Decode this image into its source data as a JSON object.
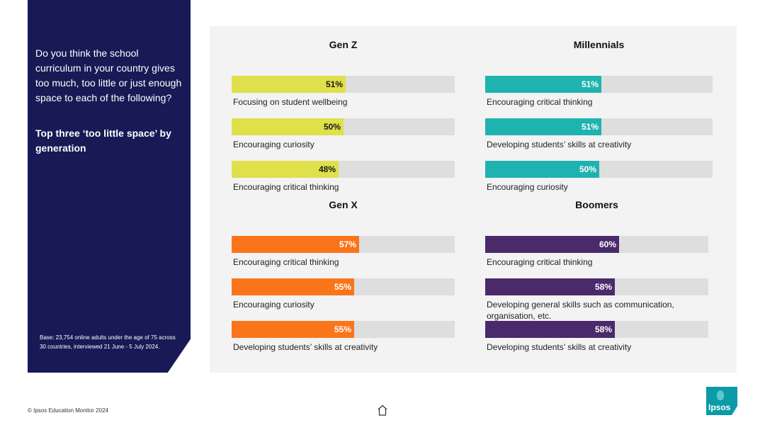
{
  "sidebar": {
    "question": "Do you think the school curriculum in  your country gives too much, too little or just enough space to each of the following?",
    "subtitle": "Top three ‘too little space’ by generation",
    "base_note": "Base: 23,754 online adults under the age of 75 across 30 countries, interviewed 21 June - 5 July 2024."
  },
  "footer": {
    "copyright": "© Ipsos Education Monitor 2024",
    "logo_text": "Ipsos",
    "home_icon": "home-icon"
  },
  "colors": {
    "sidebar_bg": "#171a55",
    "panel_bg": "#f3f3f3",
    "track": "#dedede",
    "gen_z": "#dfe04a",
    "millennials": "#1fb3b0",
    "gen_x": "#fa7519",
    "boomers": "#4a2a6b",
    "logo": "#0b9aa7"
  },
  "chart_data": {
    "type": "bar",
    "orientation": "horizontal",
    "unit": "%",
    "xlim": [
      0,
      100
    ],
    "groups": [
      {
        "name": "Gen Z",
        "color": "#dfe04a",
        "label_color": "#1a1a1a",
        "items": [
          {
            "label": "Focusing on student wellbeing",
            "value": 51,
            "value_label": "51%"
          },
          {
            "label": "Encouraging curiosity",
            "value": 50,
            "value_label": "50%"
          },
          {
            "label": "Encouraging critical thinking",
            "value": 48,
            "value_label": "48%"
          }
        ]
      },
      {
        "name": "Millennials",
        "color": "#1fb3b0",
        "label_color": "#ffffff",
        "items": [
          {
            "label": "Encouraging critical thinking",
            "value": 51,
            "value_label": "51%"
          },
          {
            "label": "Developing students’ skills at creativity",
            "value": 51,
            "value_label": "51%"
          },
          {
            "label": "Encouraging curiosity",
            "value": 50,
            "value_label": "50%"
          }
        ]
      },
      {
        "name": "Gen X",
        "color": "#fa7519",
        "label_color": "#ffffff",
        "items": [
          {
            "label": "Encouraging critical thinking",
            "value": 57,
            "value_label": "57%"
          },
          {
            "label": "Encouraging curiosity",
            "value": 55,
            "value_label": "55%"
          },
          {
            "label": "Developing students’ skills at creativity",
            "value": 55,
            "value_label": "55%"
          }
        ]
      },
      {
        "name": "Boomers",
        "color": "#4a2a6b",
        "label_color": "#ffffff",
        "items": [
          {
            "label": "Encouraging critical thinking",
            "value": 60,
            "value_label": "60%"
          },
          {
            "label": "Developing general skills such as communication, organisation, etc.",
            "value": 58,
            "value_label": "58%"
          },
          {
            "label": "Developing students’ skills at creativity",
            "value": 58,
            "value_label": "58%"
          }
        ]
      }
    ]
  }
}
